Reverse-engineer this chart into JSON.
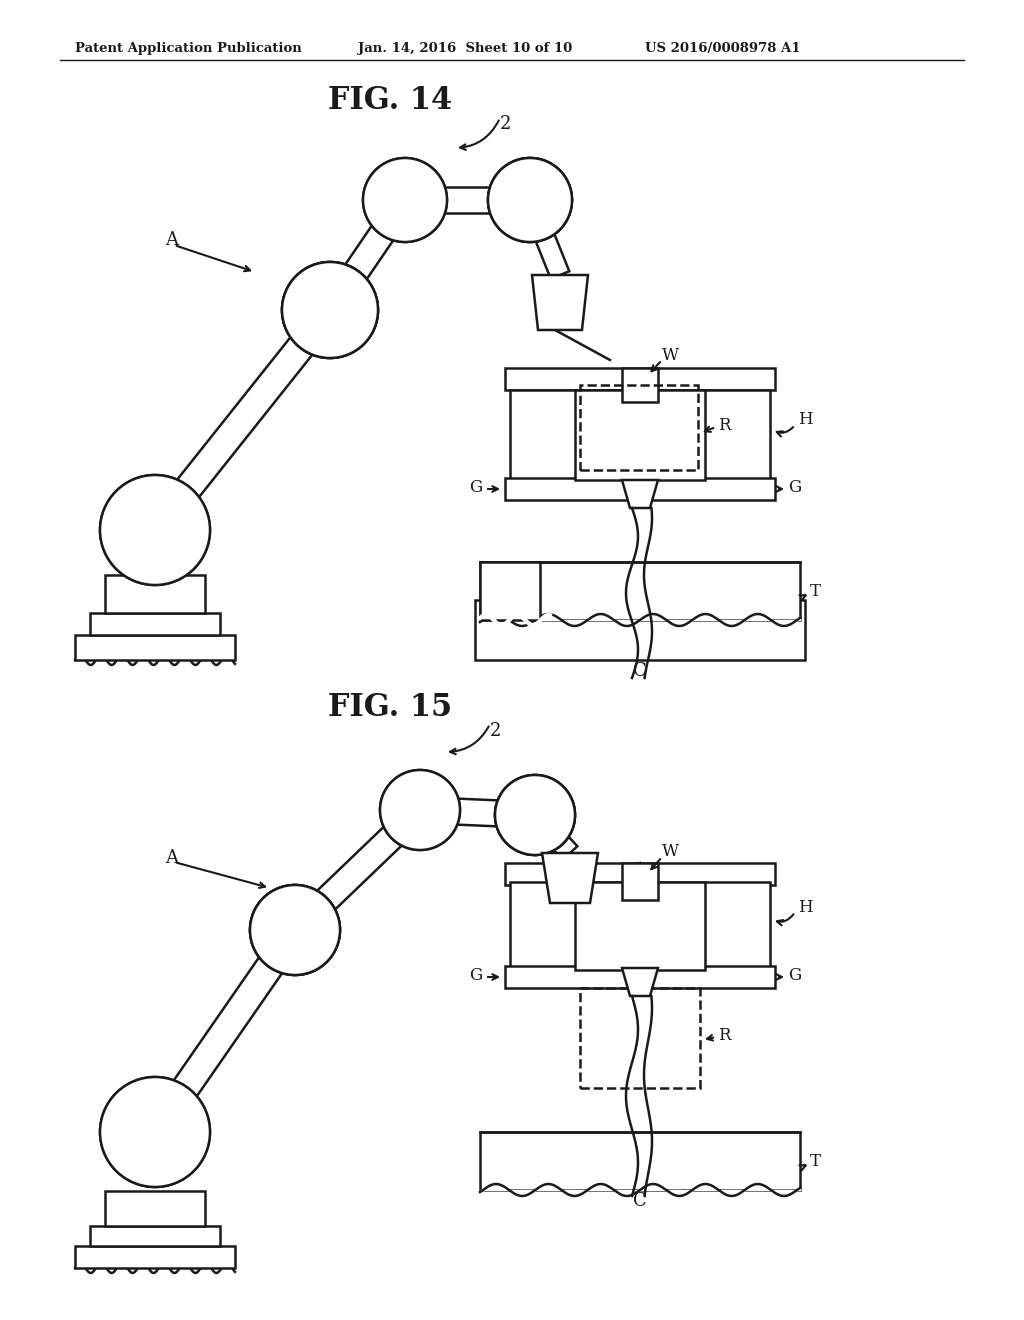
{
  "header_left": "Patent Application Publication",
  "header_mid": "Jan. 14, 2016  Sheet 10 of 10",
  "header_right": "US 2016/0008978 A1",
  "fig14_title": "FIG. 14",
  "fig15_title": "FIG. 15",
  "background": "#ffffff",
  "line_color": "#1a1a1a",
  "line_width": 1.8
}
